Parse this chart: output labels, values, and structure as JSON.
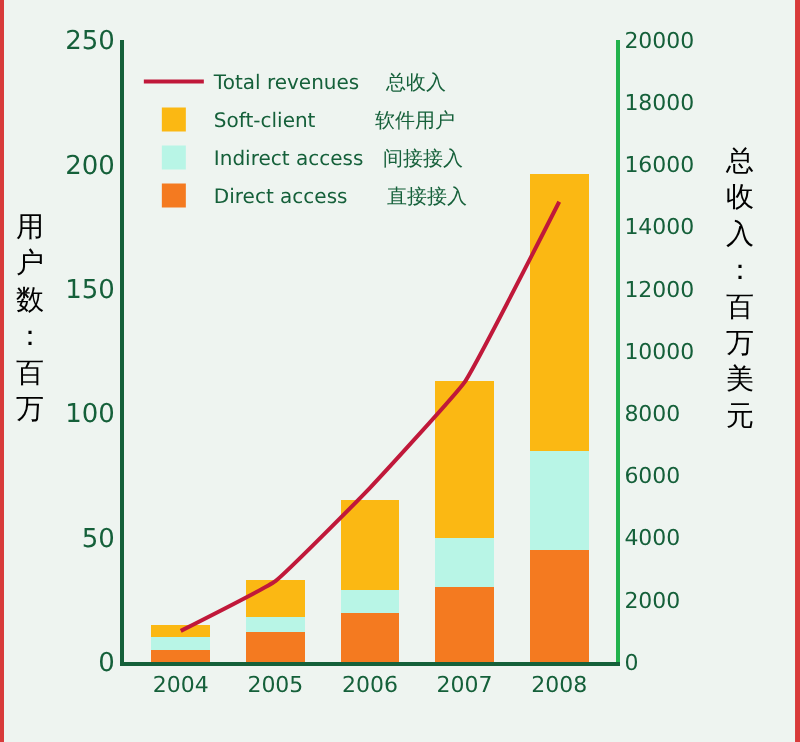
{
  "chart_data": {
    "type": "bar",
    "stacked": true,
    "categories": [
      "2004",
      "2005",
      "2006",
      "2007",
      "2008"
    ],
    "series": [
      {
        "name": "Direct access　　直接接入",
        "color": "#f47a20",
        "values": [
          5,
          12,
          19.5,
          30,
          45
        ]
      },
      {
        "name": "Indirect access　间接接入",
        "color": "#b8f5e6",
        "values": [
          5,
          6,
          9.5,
          20,
          40
        ]
      },
      {
        "name": "Soft-client　　　软件用户",
        "color": "#fbb813",
        "values": [
          5,
          15,
          36,
          63,
          111
        ]
      },
      {
        "name": "Total revenues　 总收入",
        "color": "#c0183a",
        "type": "line",
        "axis": "y2",
        "values": [
          1000,
          2600,
          5600,
          9000,
          14800
        ]
      }
    ],
    "ylabel": "用户数：百万",
    "y2label": "总收入：百万美元",
    "ylim": [
      0,
      250
    ],
    "yticks": [
      0,
      50,
      100,
      150,
      200,
      250
    ],
    "y2lim": [
      0,
      20000
    ],
    "y2ticks": [
      0,
      2000,
      4000,
      6000,
      8000,
      10000,
      12000,
      14000,
      16000,
      18000,
      20000
    ],
    "legend": "top left",
    "grid": false,
    "marker": "none"
  }
}
